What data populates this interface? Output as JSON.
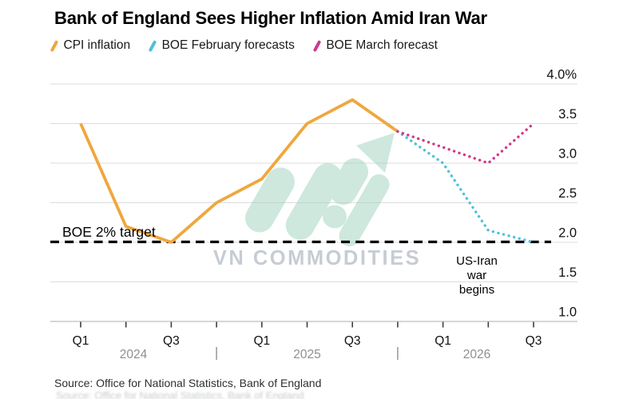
{
  "title": "Bank of England Sees Higher Inflation Amid Iran War",
  "legend": [
    {
      "label": "CPI inflation",
      "color": "#EFA73E"
    },
    {
      "label": "BOE February forecasts",
      "color": "#4DC0DC"
    },
    {
      "label": "BOE March forecast",
      "color": "#D1388E"
    }
  ],
  "chart_data": {
    "type": "line",
    "title": "Bank of England Sees Higher Inflation Amid Iran War",
    "x_unit": "quarter",
    "quarters": [
      "2024 Q1",
      "2024 Q2",
      "2024 Q3",
      "2024 Q4",
      "2025 Q1",
      "2025 Q2",
      "2025 Q3",
      "2025 Q4",
      "2026 Q1",
      "2026 Q2",
      "2026 Q3"
    ],
    "series": [
      {
        "name": "CPI inflation",
        "color": "#EFA73E",
        "style": "solid",
        "start_quarter_index": 0,
        "values": [
          3.5,
          2.2,
          2.0,
          2.5,
          2.8,
          3.5,
          3.8,
          3.4
        ]
      },
      {
        "name": "BOE February forecasts",
        "color": "#4DC0DC",
        "style": "dotted",
        "start_quarter_index": 7,
        "values": [
          3.4,
          3.0,
          2.15,
          2.0
        ]
      },
      {
        "name": "BOE March forecast",
        "color": "#D1388E",
        "style": "dotted",
        "start_quarter_index": 7,
        "values": [
          3.4,
          3.2,
          3.0,
          3.5
        ]
      }
    ],
    "target_line": {
      "label": "BOE 2% target",
      "value": 2.0,
      "color": "#000000"
    },
    "yticks": {
      "values": [
        4.0,
        3.5,
        3.0,
        2.5,
        2.0,
        1.5,
        1.0
      ],
      "labels": [
        "4.0%",
        "3.5",
        "3.0",
        "2.5",
        "2.0",
        "1.5",
        "1.0"
      ]
    },
    "xticks": {
      "quarter_labels": [
        {
          "label": "Q1",
          "index": 0
        },
        {
          "label": "Q3",
          "index": 2
        },
        {
          "label": "Q1",
          "index": 4
        },
        {
          "label": "Q3",
          "index": 6
        },
        {
          "label": "Q1",
          "index": 8
        },
        {
          "label": "Q3",
          "index": 10
        }
      ],
      "year_labels": [
        "2024",
        "2025",
        "2026"
      ]
    },
    "ylim": [
      1.0,
      4.0
    ],
    "grid": true,
    "legend_position": "top",
    "annotation": {
      "lines": [
        "US-Iran",
        "war",
        "begins"
      ]
    }
  },
  "watermark": {
    "text": "VN COMMODITIES",
    "logo": "growth-arrow-icon",
    "logo_color": "#9fd3bd",
    "text_color": "#c7ccd4"
  },
  "source": "Source: Office for National Statistics, Bank of England",
  "colors": {
    "gridline": "#dcdcdc",
    "baseline": "#bdbdbd",
    "tick": "#3f3f3f",
    "axis_text": "#111111",
    "year_text": "#8f8f8f",
    "annotation_text": "#000000"
  }
}
